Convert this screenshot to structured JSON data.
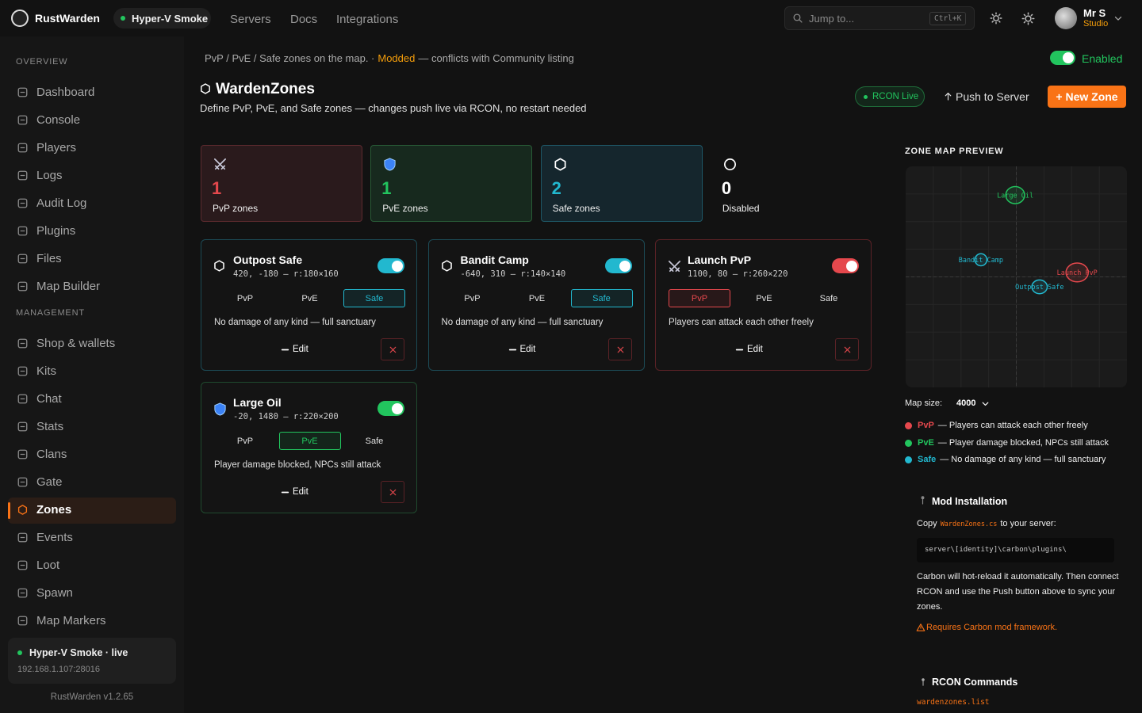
{
  "brand": "RustWarden",
  "server_pill": "Hyper-V Smoke",
  "nav": [
    "Servers",
    "Docs",
    "Integrations"
  ],
  "search": {
    "placeholder": "Jump to...",
    "shortcut": "Ctrl+K"
  },
  "user": {
    "name": "Mr S",
    "org": "Studio"
  },
  "sidebar": {
    "sections": [
      {
        "title": "OVERVIEW",
        "items": [
          "Dashboard",
          "Console",
          "Players",
          "Logs",
          "Audit Log",
          "Plugins",
          "Files",
          "Map Builder"
        ]
      },
      {
        "title": "MANAGEMENT",
        "items": [
          "Shop & wallets",
          "Kits",
          "Chat",
          "Stats",
          "Clans",
          "Gate",
          "Zones",
          "Events",
          "Loot",
          "Spawn",
          "Map Markers"
        ]
      }
    ],
    "active": "Zones",
    "status": {
      "name": "Hyper-V Smoke · live",
      "address": "192.168.1.107:28016"
    },
    "version": "RustWarden v1.2.65"
  },
  "breadcrumb": {
    "text": "PvP / PvE / Safe zones on the map. ·",
    "highlight": "Modded",
    "rest": "— conflicts with Community listing"
  },
  "enabled_label": "Enabled",
  "header": {
    "title": "WardenZones",
    "subtitle": "Define PvP, PvE, and Safe zones — changes push live via RCON, no restart needed",
    "rcon": "RCON Live",
    "push": "Push to Server",
    "new_zone": "+ New Zone"
  },
  "mode_colors": [
    "#e5484d",
    "#22c55e",
    "#22b8cf"
  ],
  "stats": [
    {
      "value": 1,
      "label": "PvP zones",
      "mode": 0
    },
    {
      "value": 1,
      "label": "PvE zones",
      "mode": 1
    },
    {
      "value": 2,
      "label": "Safe zones",
      "mode": 2
    },
    {
      "value": 0,
      "label": "Disabled",
      "mode": null
    }
  ],
  "zone_modes": [
    "PvP",
    "PvE",
    "Safe"
  ],
  "edit_label": "Edit",
  "zones": [
    {
      "name": "Outpost Safe",
      "coords": "420, -180 — r:180×160",
      "mode": 2,
      "description": "No damage of any kind — full sanctuary"
    },
    {
      "name": "Bandit Camp",
      "coords": "-640, 310 — r:140×140",
      "mode": 2,
      "description": "No damage of any kind — full sanctuary"
    },
    {
      "name": "Launch PvP",
      "coords": "1100, 80 — r:260×220",
      "mode": 0,
      "description": "Players can attack each other freely"
    },
    {
      "name": "Large Oil",
      "coords": "-20, 1480 — r:220×200",
      "mode": 1,
      "description": "Player damage blocked, NPCs still attack"
    }
  ],
  "map": {
    "title": "ZONE MAP PREVIEW",
    "size_label": "Map size:",
    "size": 4000
  },
  "legend": [
    "— Players can attack each other freely",
    "— Player damage blocked, NPCs still attack",
    "— No damage of any kind — full sanctuary"
  ],
  "mod": {
    "title": "Mod Installation",
    "copy": "Copy",
    "file": "WardenZones.cs",
    "copy_rest": "to your server:",
    "path": "server\\[identity]\\carbon\\plugins\\",
    "body": "Carbon will hot-reload it automatically. Then connect RCON and use the Push button above to sync your zones.",
    "warning": "Requires Carbon mod framework."
  },
  "rcon": {
    "title": "RCON Commands",
    "command": "wardenzones.list"
  }
}
